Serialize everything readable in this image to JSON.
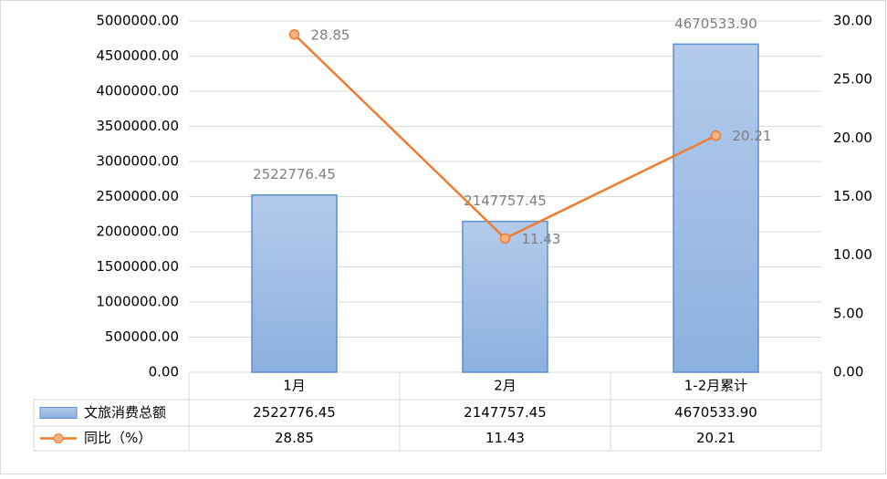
{
  "chart_data": {
    "type": "bar-line",
    "categories": [
      "1月",
      "2月",
      "1-2月累计"
    ],
    "series": [
      {
        "name": "文旅消费总额",
        "type": "bar",
        "color": "#9dbde6",
        "values": [
          2522776.45,
          2147757.45,
          4670533.9
        ],
        "value_labels": [
          "2522776.45",
          "2147757.45",
          "4670533.90"
        ]
      },
      {
        "name": "同比（%）",
        "type": "line",
        "axis": "y2",
        "color": "#ed7d31",
        "values": [
          28.85,
          11.43,
          20.21
        ]
      }
    ],
    "ylim": [
      0,
      5000000
    ],
    "yticks": [
      {
        "value": 0,
        "label": "0.00"
      },
      {
        "value": 500000,
        "label": "500000.00"
      },
      {
        "value": 1000000,
        "label": "1000000.00"
      },
      {
        "value": 1500000,
        "label": "1500000.00"
      },
      {
        "value": 2000000,
        "label": "2000000.00"
      },
      {
        "value": 2500000,
        "label": "2500000.00"
      },
      {
        "value": 3000000,
        "label": "3000000.00"
      },
      {
        "value": 3500000,
        "label": "3500000.00"
      },
      {
        "value": 4000000,
        "label": "4000000.00"
      },
      {
        "value": 4500000,
        "label": "4500000.00"
      },
      {
        "value": 5000000,
        "label": "5000000.00"
      }
    ],
    "y2lim": [
      0,
      30
    ],
    "y2ticks": [
      {
        "value": 0,
        "label": "0.00"
      },
      {
        "value": 5,
        "label": "5.00"
      },
      {
        "value": 10,
        "label": "10.00"
      },
      {
        "value": 15,
        "label": "15.00"
      },
      {
        "value": 20,
        "label": "20.00"
      },
      {
        "value": 25,
        "label": "25.00"
      },
      {
        "value": 30,
        "label": "30.00"
      }
    ],
    "grid": true
  }
}
